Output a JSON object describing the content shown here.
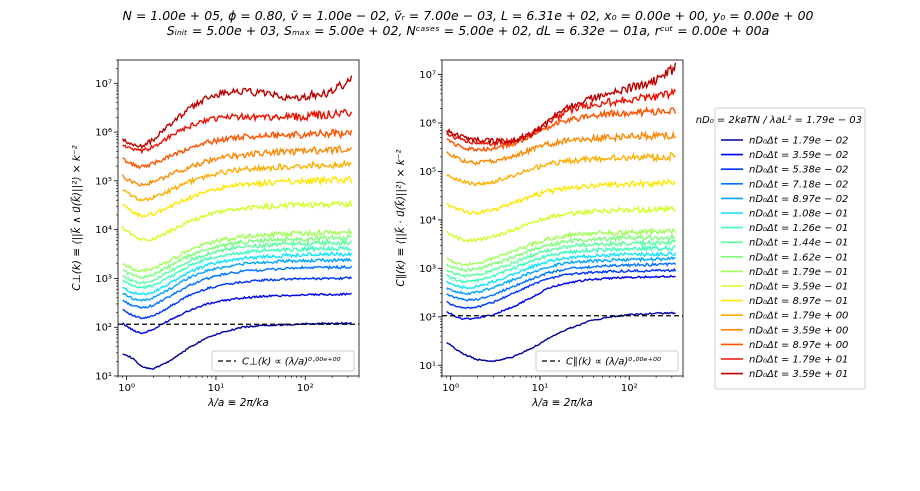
{
  "figure": {
    "title_lines": [
      "N = 1.00e + 05, ϕ = 0.80, ṽ = 1.00e − 02, ṽᵣ = 7.00e − 03, L = 6.31e + 02, x₀ = 0.00e + 00, y₀ = 0.00e + 00",
      "Sᵢₙᵢₜ = 5.00e + 03, Sₘₐₓ = 5.00e + 02, Nᶜᵃˢᵉˢ = 5.00e + 02, dL = 6.32e − 01a, rᶜᵘᵗ = 0.00e + 00a"
    ]
  },
  "legend": {
    "header": "nD₀ = 2kʙTN / λaL² = 1.79e − 03",
    "entries": [
      {
        "label": "nD₀Δt = 1.79e − 02",
        "color": "#00009f"
      },
      {
        "label": "nD₀Δt = 3.59e − 02",
        "color": "#0000f1"
      },
      {
        "label": "nD₀Δt = 5.38e − 02",
        "color": "#0035ff"
      },
      {
        "label": "nD₀Δt = 7.18e − 02",
        "color": "#0075ff"
      },
      {
        "label": "nD₀Δt = 8.97e − 02",
        "color": "#00a5ff"
      },
      {
        "label": "nD₀Δt = 1.08e − 01",
        "color": "#10e3ff"
      },
      {
        "label": "nD₀Δt = 1.26e − 01",
        "color": "#3dffb9"
      },
      {
        "label": "nD₀Δt = 1.44e − 01",
        "color": "#5cffa0"
      },
      {
        "label": "nD₀Δt = 1.62e − 01",
        "color": "#7dff7a"
      },
      {
        "label": "nD₀Δt = 1.79e − 01",
        "color": "#a0ff57"
      },
      {
        "label": "nD₀Δt = 3.59e − 01",
        "color": "#d1ff26"
      },
      {
        "label": "nD₀Δt = 8.97e − 01",
        "color": "#ffe600"
      },
      {
        "label": "nD₀Δt = 1.79e + 00",
        "color": "#ffae00"
      },
      {
        "label": "nD₀Δt = 3.59e + 00",
        "color": "#ff8700"
      },
      {
        "label": "nD₀Δt = 8.97e + 00",
        "color": "#ff5200"
      },
      {
        "label": "nD₀Δt = 1.79e + 01",
        "color": "#f01000"
      },
      {
        "label": "nD₀Δt = 3.59e + 01",
        "color": "#bc0000"
      }
    ]
  },
  "chart_data": [
    {
      "type": "line",
      "name": "left",
      "xscale": "log",
      "yscale": "log",
      "xlim": [
        0.8,
        400
      ],
      "ylim": [
        10,
        30000000
      ],
      "xlabel": "λ/a ≡ 2π/ka",
      "ylabel": "C⊥(k) ≡ ⟨||k⃗ ∧ u⃗(k⃗)||²⟩ × k⁻²",
      "xticks": [
        {
          "v": 1,
          "label": "10⁰"
        },
        {
          "v": 10,
          "label": "10¹"
        },
        {
          "v": 100,
          "label": "10²"
        }
      ],
      "yticks": [
        {
          "v": 10,
          "label": "10¹"
        },
        {
          "v": 100,
          "label": "10²"
        },
        {
          "v": 1000,
          "label": "10³"
        },
        {
          "v": 10000,
          "label": "10⁴"
        },
        {
          "v": 100000,
          "label": "10⁵"
        },
        {
          "v": 1000000,
          "label": "10⁶"
        },
        {
          "v": 10000000,
          "label": "10⁷"
        }
      ],
      "x": [
        0.9,
        1.0,
        1.2,
        1.5,
        2.0,
        3.0,
        5.0,
        8.0,
        12,
        20,
        35,
        60,
        100,
        200,
        330
      ],
      "series": [
        {
          "values": [
            29,
            27,
            22,
            15,
            14,
            20,
            38,
            62,
            80,
            100,
            110,
            112,
            118,
            120,
            122
          ]
        },
        {
          "values": [
            120,
            105,
            85,
            75,
            90,
            140,
            220,
            300,
            350,
            400,
            430,
            450,
            460,
            470,
            480
          ]
        },
        {
          "values": [
            235,
            205,
            170,
            150,
            170,
            260,
            450,
            620,
            750,
            850,
            920,
            960,
            990,
            1000,
            1020
          ]
        },
        {
          "values": [
            360,
            320,
            270,
            250,
            280,
            420,
            720,
            1000,
            1200,
            1400,
            1500,
            1600,
            1650,
            1680,
            1700
          ]
        },
        {
          "values": [
            500,
            450,
            380,
            350,
            400,
            600,
            1050,
            1450,
            1700,
            2000,
            2150,
            2250,
            2300,
            2350,
            2400
          ]
        },
        {
          "values": [
            650,
            580,
            500,
            470,
            530,
            780,
            1350,
            1900,
            2250,
            2600,
            2800,
            2950,
            3050,
            3100,
            3150
          ]
        },
        {
          "values": [
            900,
            800,
            700,
            640,
            720,
            1050,
            1800,
            2500,
            3000,
            3400,
            3700,
            3900,
            4000,
            4100,
            4200
          ]
        },
        {
          "values": [
            1150,
            1020,
            880,
            820,
            920,
            1350,
            2300,
            3200,
            3800,
            4400,
            4800,
            5000,
            5200,
            5300,
            5400
          ]
        },
        {
          "values": [
            1500,
            1350,
            1150,
            1050,
            1200,
            1750,
            2900,
            4000,
            4800,
            5500,
            6000,
            6300,
            6500,
            6700,
            6800
          ]
        },
        {
          "values": [
            2000,
            1800,
            1550,
            1400,
            1600,
            2300,
            3800,
            5200,
            6200,
            7100,
            7800,
            8200,
            8500,
            8700,
            8900
          ]
        },
        {
          "values": [
            11000,
            9500,
            7500,
            6200,
            6500,
            9000,
            14500,
            20000,
            24000,
            27000,
            29500,
            31000,
            32000,
            33000,
            34000
          ]
        },
        {
          "values": [
            32000,
            28000,
            22000,
            19000,
            21000,
            29000,
            45000,
            60000,
            72000,
            82000,
            90000,
            96000,
            100000,
            103000,
            105000
          ]
        },
        {
          "values": [
            65000,
            58000,
            47000,
            40000,
            45000,
            62000,
            95000,
            125000,
            150000,
            170000,
            185000,
            195000,
            205000,
            215000,
            220000
          ]
        },
        {
          "values": [
            125000,
            110000,
            92000,
            82000,
            95000,
            130000,
            190000,
            250000,
            300000,
            340000,
            370000,
            390000,
            410000,
            430000,
            450000
          ]
        },
        {
          "values": [
            280000,
            250000,
            210000,
            190000,
            230000,
            320000,
            450000,
            600000,
            720000,
            800000,
            850000,
            870000,
            900000,
            930000,
            950000
          ]
        },
        {
          "values": [
            550000,
            500000,
            430000,
            400000,
            500000,
            800000,
            1300000,
            1800000,
            2000000,
            2100000,
            2050000,
            2000000,
            2100000,
            2300000,
            2600000
          ]
        },
        {
          "values": [
            680000,
            620000,
            540000,
            520000,
            700000,
            1400000,
            3000000,
            5000000,
            6500000,
            7000000,
            6000000,
            5000000,
            5500000,
            6500000,
            13000000
          ]
        }
      ],
      "reference_line": {
        "y": 115,
        "label": "C⊥(k) ∝ (λ/a)⁰·⁰⁰ᵉ⁺⁰⁰",
        "legend_position": "lower right"
      }
    },
    {
      "type": "line",
      "name": "right",
      "xscale": "log",
      "yscale": "log",
      "xlim": [
        0.8,
        400
      ],
      "ylim": [
        6,
        20000000
      ],
      "xlabel": "λ/a ≡ 2π/ka",
      "ylabel": "C∥(k) ≡ ⟨||k⃗ · u⃗(k⃗)||²⟩ × k⁻²",
      "xticks": [
        {
          "v": 1,
          "label": "10⁰"
        },
        {
          "v": 10,
          "label": "10¹"
        },
        {
          "v": 100,
          "label": "10²"
        }
      ],
      "yticks": [
        {
          "v": 10,
          "label": "10¹"
        },
        {
          "v": 100,
          "label": "10²"
        },
        {
          "v": 1000,
          "label": "10³"
        },
        {
          "v": 10000,
          "label": "10⁴"
        },
        {
          "v": 100000,
          "label": "10⁵"
        },
        {
          "v": 1000000,
          "label": "10⁶"
        },
        {
          "v": 10000000,
          "label": "10⁷"
        }
      ],
      "x": [
        0.9,
        1.0,
        1.2,
        1.5,
        2.0,
        3.0,
        5.0,
        8.0,
        12,
        20,
        35,
        60,
        100,
        200,
        330
      ],
      "series": [
        {
          "values": [
            29,
            26,
            20,
            16,
            13,
            12,
            15,
            22,
            35,
            55,
            80,
            100,
            110,
            118,
            120
          ]
        },
        {
          "values": [
            130,
            115,
            95,
            90,
            95,
            110,
            160,
            250,
            380,
            500,
            580,
            620,
            650,
            670,
            680
          ]
        },
        {
          "values": [
            210,
            185,
            160,
            150,
            160,
            200,
            300,
            450,
            600,
            750,
            820,
            860,
            880,
            900,
            920
          ]
        },
        {
          "values": [
            300,
            270,
            240,
            220,
            230,
            290,
            420,
            600,
            800,
            980,
            1080,
            1130,
            1160,
            1190,
            1220
          ]
        },
        {
          "values": [
            400,
            360,
            320,
            300,
            320,
            400,
            580,
            820,
            1080,
            1300,
            1420,
            1480,
            1520,
            1560,
            1600
          ]
        },
        {
          "values": [
            520,
            470,
            420,
            400,
            420,
            530,
            760,
            1060,
            1380,
            1650,
            1800,
            1880,
            1930,
            1980,
            2030
          ]
        },
        {
          "values": [
            700,
            640,
            560,
            530,
            560,
            700,
            1000,
            1400,
            1800,
            2150,
            2350,
            2450,
            2520,
            2580,
            2650
          ]
        },
        {
          "values": [
            920,
            840,
            740,
            700,
            740,
            920,
            1300,
            1800,
            2350,
            2800,
            3050,
            3180,
            3280,
            3360,
            3450
          ]
        },
        {
          "values": [
            1200,
            1100,
            970,
            920,
            970,
            1200,
            1700,
            2350,
            3050,
            3650,
            3950,
            4100,
            4250,
            4350,
            4450
          ]
        },
        {
          "values": [
            1600,
            1450,
            1280,
            1200,
            1270,
            1580,
            2250,
            3100,
            4000,
            4800,
            5200,
            5400,
            5550,
            5700,
            5850
          ]
        },
        {
          "values": [
            5500,
            4900,
            4200,
            3800,
            3800,
            4500,
            6200,
            8500,
            11000,
            13500,
            14800,
            15500,
            16000,
            16500,
            17000
          ]
        },
        {
          "values": [
            22000,
            19500,
            16500,
            14500,
            14000,
            16000,
            22000,
            30000,
            38000,
            45000,
            50000,
            53000,
            55000,
            57000,
            58000
          ]
        },
        {
          "values": [
            90000,
            80000,
            67000,
            58000,
            55000,
            62000,
            82000,
            110000,
            140000,
            165000,
            180000,
            190000,
            195000,
            200000,
            205000
          ]
        },
        {
          "values": [
            250000,
            220000,
            185000,
            160000,
            150000,
            165000,
            210000,
            280000,
            360000,
            430000,
            470000,
            500000,
            520000,
            540000,
            560000
          ]
        },
        {
          "values": [
            450000,
            400000,
            340000,
            300000,
            280000,
            300000,
            380000,
            540000,
            800000,
            1150000,
            1400000,
            1550000,
            1650000,
            1750000,
            1900000
          ]
        },
        {
          "values": [
            600000,
            550000,
            480000,
            420000,
            380000,
            380000,
            420000,
            600000,
            1000000,
            1700000,
            2300000,
            2700000,
            3000000,
            3500000,
            4500000
          ]
        },
        {
          "values": [
            700000,
            640000,
            560000,
            500000,
            450000,
            430000,
            430000,
            580000,
            1050000,
            2000000,
            3200000,
            4200000,
            5200000,
            7500000,
            14000000
          ]
        }
      ],
      "reference_line": {
        "y": 105,
        "label": "C∥(k) ∝ (λ/a)⁰·⁰⁰ᵉ⁺⁰⁰",
        "legend_position": "lower right"
      }
    }
  ]
}
